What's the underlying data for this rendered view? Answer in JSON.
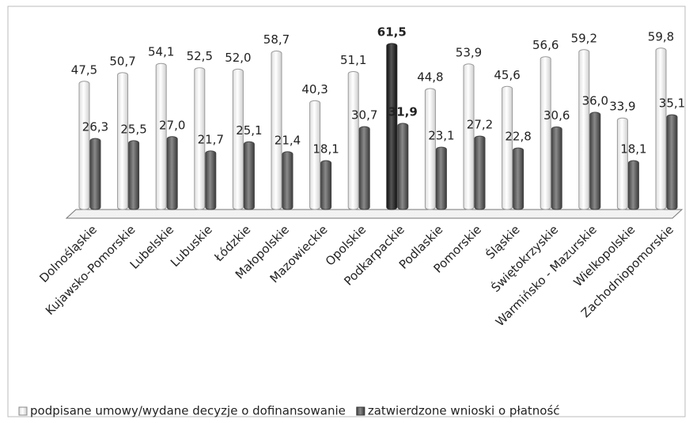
{
  "chart_data": {
    "type": "bar",
    "categories": [
      "Dolnośląskie",
      "Kujawsko-Pomorskie",
      "Lubelskie",
      "Lubuskie",
      "Łódzkie",
      "Małopolskie",
      "Mazowieckie",
      "Opolskie",
      "Podkarpackie",
      "Podlaskie",
      "Pomorskie",
      "Śląskie",
      "Świętokrzyskie",
      "Warmińsko - Mazurskie",
      "Wielkopolskie",
      "Zachodniopomorskie"
    ],
    "series": [
      {
        "name": "podpisane umowy/wydane decyzje o dofinansowanie",
        "color": "#f4f4f4",
        "values": [
          47.5,
          50.7,
          54.1,
          52.5,
          52.0,
          58.7,
          40.3,
          51.1,
          61.5,
          44.8,
          53.9,
          45.6,
          56.6,
          59.2,
          33.9,
          59.8
        ],
        "value_labels": [
          "47,5",
          "50,7",
          "54,1",
          "52,5",
          "52,0",
          "58,7",
          "40,3",
          "51,1",
          "61,5",
          "44,8",
          "53,9",
          "45,6",
          "56,6",
          "59,2",
          "33,9",
          "59,8"
        ]
      },
      {
        "name": "zatwierdzone wnioski o płatność",
        "color": "#6a6a6a",
        "values": [
          26.3,
          25.5,
          27.0,
          21.7,
          25.1,
          21.4,
          18.1,
          30.7,
          31.9,
          23.1,
          27.2,
          22.8,
          30.6,
          36.0,
          18.1,
          35.1
        ],
        "value_labels": [
          "26,3",
          "25,5",
          "27,0",
          "21,7",
          "25,1",
          "21,4",
          "18,1",
          "30,7",
          "31,9",
          "23,1",
          "27,2",
          "22,8",
          "30,6",
          "36,0",
          "18,1",
          "35,1"
        ]
      }
    ],
    "highlight": {
      "index": 8,
      "color": "#2e2e2e"
    },
    "ylim": [
      0,
      65
    ],
    "legend": "bottom"
  }
}
